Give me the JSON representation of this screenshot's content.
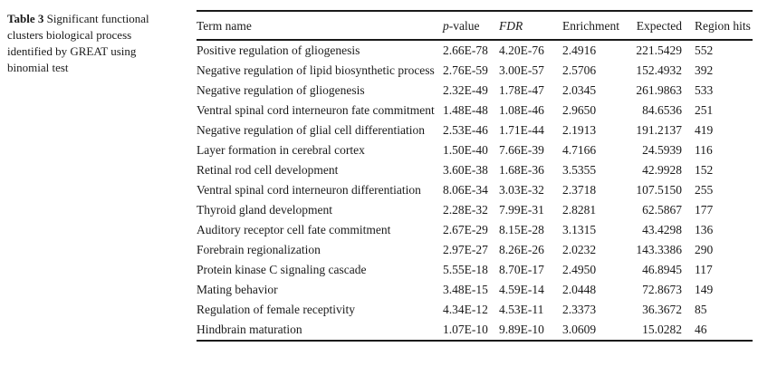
{
  "caption": {
    "label": "Table 3",
    "text": "Significant functional clusters biological process identified by GREAT using binomial test"
  },
  "table": {
    "header": {
      "term": "Term name",
      "p_italic": "p",
      "p_rest": "-value",
      "fdr": "FDR",
      "enrichment": "Enrichment",
      "expected": "Expected",
      "region_hits": "Region hits"
    },
    "rows": [
      [
        "Positive regulation of gliogenesis",
        "2.66E-78",
        "4.20E-76",
        "2.4916",
        "221.5429",
        "552"
      ],
      [
        "Negative regulation of lipid biosynthetic process",
        "2.76E-59",
        "3.00E-57",
        "2.5706",
        "152.4932",
        "392"
      ],
      [
        "Negative regulation of gliogenesis",
        "2.32E-49",
        "1.78E-47",
        "2.0345",
        "261.9863",
        "533"
      ],
      [
        "Ventral spinal cord interneuron fate commitment",
        "1.48E-48",
        "1.08E-46",
        "2.9650",
        "84.6536",
        "251"
      ],
      [
        "Negative regulation of glial cell differentiation",
        "2.53E-46",
        "1.71E-44",
        "2.1913",
        "191.2137",
        "419"
      ],
      [
        "Layer formation in cerebral cortex",
        "1.50E-40",
        "7.66E-39",
        "4.7166",
        "24.5939",
        "116"
      ],
      [
        "Retinal rod cell development",
        "3.60E-38",
        "1.68E-36",
        "3.5355",
        "42.9928",
        "152"
      ],
      [
        "Ventral spinal cord interneuron differentiation",
        "8.06E-34",
        "3.03E-32",
        "2.3718",
        "107.5150",
        "255"
      ],
      [
        "Thyroid gland development",
        "2.28E-32",
        "7.99E-31",
        "2.8281",
        "62.5867",
        "177"
      ],
      [
        "Auditory receptor cell fate commitment",
        "2.67E-29",
        "8.15E-28",
        "3.1315",
        "43.4298",
        "136"
      ],
      [
        "Forebrain regionalization",
        "2.97E-27",
        "8.26E-26",
        "2.0232",
        "143.3386",
        "290"
      ],
      [
        "Protein kinase C signaling cascade",
        "5.55E-18",
        "8.70E-17",
        "2.4950",
        "46.8945",
        "117"
      ],
      [
        "Mating behavior",
        "3.48E-15",
        "4.59E-14",
        "2.0448",
        "72.8673",
        "149"
      ],
      [
        "Regulation of female receptivity",
        "4.34E-12",
        "4.53E-11",
        "2.3373",
        "36.3672",
        "85"
      ],
      [
        "Hindbrain maturation",
        "1.07E-10",
        "9.89E-10",
        "3.0609",
        "15.0282",
        "46"
      ]
    ]
  }
}
